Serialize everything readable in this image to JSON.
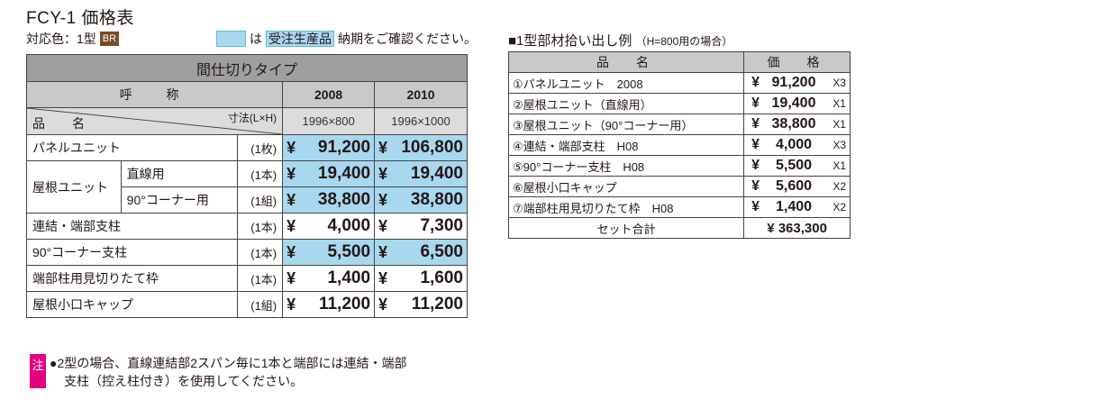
{
  "header": {
    "title": "FCY-1 価格表",
    "color_label": "対応色：1型",
    "color_badge": "BR",
    "legend_mark": "は",
    "legend_chip": "受注生産品",
    "legend_text": "納期をご確認ください。"
  },
  "main_table": {
    "type_title": "間仕切りタイプ",
    "yobi_label": "呼　称",
    "hinmei_label": "品　名",
    "size_label": "寸法(L×H)",
    "columns": [
      {
        "code": "2008",
        "size": "1996×800"
      },
      {
        "code": "2010",
        "size": "1996×1000"
      }
    ],
    "rows": [
      {
        "name": "パネルユニット",
        "unit": "(1枚)",
        "p1": "91,200",
        "p2": "106,800",
        "highlight": true
      },
      {
        "name": "屋根ユニット",
        "sub": "直線用",
        "unit": "(1本)",
        "p1": "19,400",
        "p2": "19,400",
        "highlight": true
      },
      {
        "name": "",
        "sub": "90°コーナー用",
        "unit": "(1組)",
        "p1": "38,800",
        "p2": "38,800",
        "highlight": true
      },
      {
        "name": "連結・端部支柱",
        "unit": "(1本)",
        "p1": "4,000",
        "p2": "7,300",
        "highlight": false
      },
      {
        "name": "90°コーナー支柱",
        "unit": "(1本)",
        "p1": "5,500",
        "p2": "6,500",
        "highlight": true
      },
      {
        "name": "端部柱用見切りたて枠",
        "unit": "(1本)",
        "p1": "1,400",
        "p2": "1,600",
        "highlight": false
      },
      {
        "name": "屋根小口キャップ",
        "unit": "(1組)",
        "p1": "11,200",
        "p2": "11,200",
        "highlight": false
      }
    ],
    "yen": "¥"
  },
  "sub_section": {
    "title": "■1型部材拾い出し例",
    "note": "（H=800用の場合）",
    "col_name": "品　名",
    "col_price": "価　格",
    "rows": [
      {
        "name": "①パネルユニット　2008",
        "price": "91,200",
        "qty": "X3"
      },
      {
        "name": "②屋根ユニット（直線用）",
        "price": "19,400",
        "qty": "X1"
      },
      {
        "name": "③屋根ユニット（90°コーナー用）",
        "price": "38,800",
        "qty": "X1"
      },
      {
        "name": "④連結・端部支柱　H08",
        "price": "4,000",
        "qty": "X3"
      },
      {
        "name": "⑤90°コーナー支柱　H08",
        "price": "5,500",
        "qty": "X1"
      },
      {
        "name": "⑥屋根小口キャップ",
        "price": "5,600",
        "qty": "X2"
      },
      {
        "name": "⑦端部柱用見切りたて枠　H08",
        "price": "1,400",
        "qty": "X2"
      }
    ],
    "total_label": "セット合計",
    "total_value": "¥ 363,300",
    "yen": "¥"
  },
  "note": {
    "badge": "注",
    "line1": "●2型の場合、直線連結部2スパン毎に1本と端部には連結・端部",
    "line2": "支柱（控え柱付き）を使用してください。"
  },
  "colors": {
    "highlight": "#a8d8f0",
    "header_dark": "#9f9f9f",
    "badge_brown": "#7a4a24",
    "note_magenta": "#e4007f"
  }
}
